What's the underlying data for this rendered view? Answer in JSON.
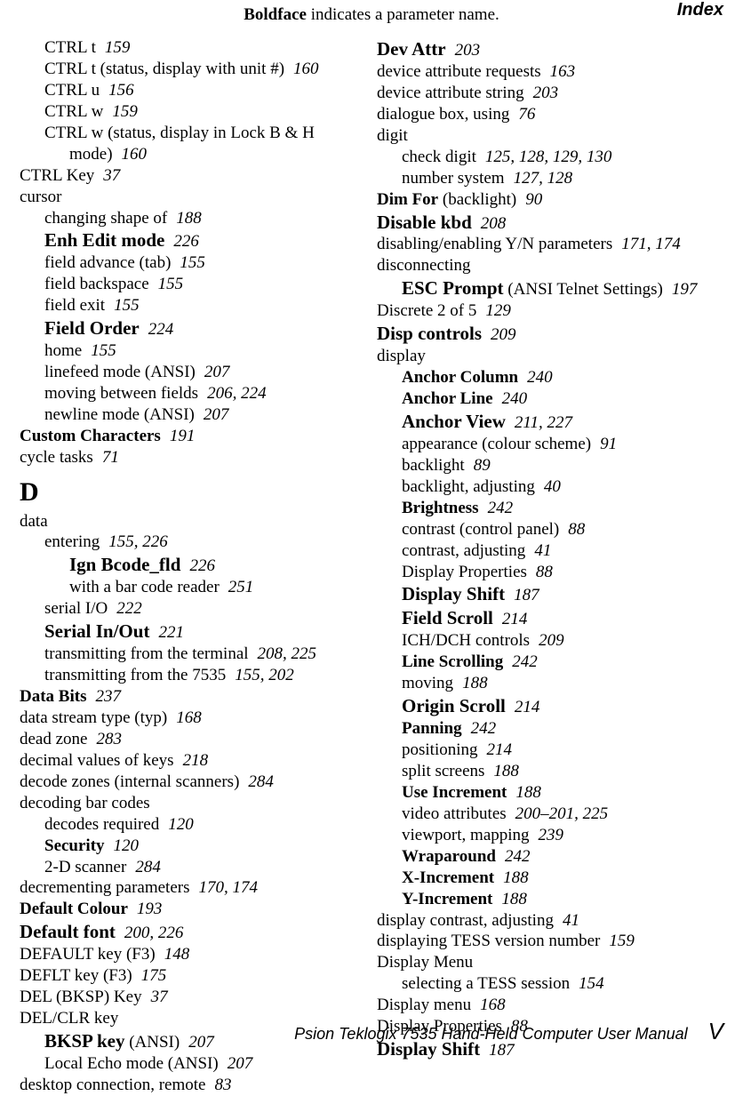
{
  "header": {
    "section_label": "Index",
    "subhead_bold": "Boldface",
    "subhead_rest": " indicates a parameter name."
  },
  "footer": {
    "book_title": "Psion Teklogix 7535 Hand-Held Computer User Manual",
    "page_number": "V"
  },
  "left": {
    "i01_t": "CTRL t",
    "i01_p": "159",
    "i02_t": "CTRL t (status, display with unit #)",
    "i02_p": "160",
    "i03_t": "CTRL u",
    "i03_p": "156",
    "i04_t": "CTRL w",
    "i04_p": "159",
    "i05_t": "CTRL w (status, display in Lock B & H mode)",
    "i05_p": "160",
    "i06_t": "CTRL Key",
    "i06_p": "37",
    "i07_t": "cursor",
    "i08_t": "changing shape of",
    "i08_p": "188",
    "i09_t": "Enh Edit mode",
    "i09_p": "226",
    "i10_t": "field advance (tab)",
    "i10_p": "155",
    "i11_t": "field backspace",
    "i11_p": "155",
    "i12_t": "field exit",
    "i12_p": "155",
    "i13_t": "Field Order",
    "i13_p": "224",
    "i14_t": "home",
    "i14_p": "155",
    "i15_t": "linefeed mode (ANSI)",
    "i15_p": "207",
    "i16_t": "moving between fields",
    "i16_p": "206, 224",
    "i17_t": "newline mode (ANSI)",
    "i17_p": "207",
    "i18_t": "Custom Characters",
    "i18_p": "191",
    "i19_t": "cycle tasks",
    "i19_p": "71",
    "sec_d": "D",
    "i20_t": "data",
    "i21_t": "entering",
    "i21_p": "155, 226",
    "i22_t": "Ign Bcode_fld",
    "i22_p": "226",
    "i23_t": "with a bar code reader",
    "i23_p": "251",
    "i24_t": "serial I/O",
    "i24_p": "222",
    "i25_t": "Serial In/Out",
    "i25_p": "221",
    "i26_t": "transmitting from the terminal",
    "i26_p": "208, 225",
    "i27_t": "transmitting from the 7535",
    "i27_p": "155, 202",
    "i28_t": "Data Bits",
    "i28_p": "237",
    "i29_t": "data stream type (typ)",
    "i29_p": "168",
    "i30_t": "dead zone",
    "i30_p": "283",
    "i31_t": "decimal values of keys",
    "i31_p": "218",
    "i32_t": "decode zones (internal scanners)",
    "i32_p": "284",
    "i33_t": "decoding bar codes",
    "i34_t": "decodes required",
    "i34_p": "120",
    "i35_t": "Security",
    "i35_p": "120",
    "i36_t": "2-D scanner",
    "i36_p": "284",
    "i37_t": "decrementing parameters",
    "i37_p": "170, 174",
    "i38_t": "Default Colour",
    "i38_p": "193",
    "i39_t": "Default font",
    "i39_p": "200, 226",
    "i40_t": "DEFAULT key (F3)",
    "i40_p": "148",
    "i41_t": "DEFLT key (F3)",
    "i41_p": "175",
    "i42_t": "DEL (BKSP) Key",
    "i42_p": "37",
    "i43_t": "DEL/CLR key",
    "i44_t": "BKSP key",
    "i44_t2": " (ANSI)",
    "i44_p": "207",
    "i45_t": "Local Echo mode (ANSI)",
    "i45_p": "207",
    "i46_t": "desktop connection, remote",
    "i46_p": "83"
  },
  "right": {
    "r01_t": "Dev Attr",
    "r01_p": "203",
    "r02_t": "device attribute requests",
    "r02_p": "163",
    "r03_t": "device attribute string",
    "r03_p": "203",
    "r04_t": "dialogue box, using",
    "r04_p": "76",
    "r05_t": "digit",
    "r06_t": "check digit",
    "r06_p": "125, 128, 129, 130",
    "r07_t": "number system",
    "r07_p": "127, 128",
    "r08_t": "Dim For",
    "r08_t2": " (backlight)",
    "r08_p": "90",
    "r09_t": "Disable kbd",
    "r09_p": "208",
    "r10_t": "disabling/enabling Y/N parameters",
    "r10_p": "171, 174",
    "r11_t": "disconnecting",
    "r12_t": "ESC Prompt",
    "r12_t2": " (ANSI Telnet Settings)",
    "r12_p": "197",
    "r13_t": "Discrete 2 of 5",
    "r13_p": "129",
    "r14_t": "Disp controls",
    "r14_p": "209",
    "r15_t": "display",
    "r16_t": "Anchor Column",
    "r16_p": "240",
    "r17_t": "Anchor Line",
    "r17_p": "240",
    "r18_t": "Anchor View",
    "r18_p": "211, 227",
    "r19_t": "appearance (colour scheme)",
    "r19_p": "91",
    "r20_t": "backlight",
    "r20_p": "89",
    "r21_t": "backlight, adjusting",
    "r21_p": "40",
    "r22_t": "Brightness",
    "r22_p": "242",
    "r23_t": "contrast (control panel)",
    "r23_p": "88",
    "r24_t": "contrast, adjusting",
    "r24_p": "41",
    "r25_t": "Display Properties",
    "r25_p": "88",
    "r26_t": "Display Shift",
    "r26_p": "187",
    "r27_t": "Field Scroll",
    "r27_p": "214",
    "r28_t": "ICH/DCH controls",
    "r28_p": "209",
    "r29_t": "Line Scrolling",
    "r29_p": "242",
    "r30_t": "moving",
    "r30_p": "188",
    "r31_t": "Origin Scroll",
    "r31_p": "214",
    "r32_t": "Panning",
    "r32_p": "242",
    "r33_t": "positioning",
    "r33_p": "214",
    "r34_t": "split screens",
    "r34_p": "188",
    "r35_t": "Use Increment",
    "r35_p": "188",
    "r36_t": "video attributes",
    "r36_p": "200–201, 225",
    "r37_t": "viewport, mapping",
    "r37_p": "239",
    "r38_t": "Wraparound",
    "r38_p": "242",
    "r39_t": "X-Increment",
    "r39_p": "188",
    "r40_t": "Y-Increment",
    "r40_p": "188",
    "r41_t": "display contrast, adjusting",
    "r41_p": "41",
    "r42_t": "displaying TESS version number",
    "r42_p": "159",
    "r43_t": "Display Menu",
    "r44_t": "selecting a TESS session",
    "r44_p": "154",
    "r45_t": "Display menu",
    "r45_p": "168",
    "r46_t": "Display Properties",
    "r46_p": "88",
    "r47_t": "Display Shift",
    "r47_p": "187"
  }
}
